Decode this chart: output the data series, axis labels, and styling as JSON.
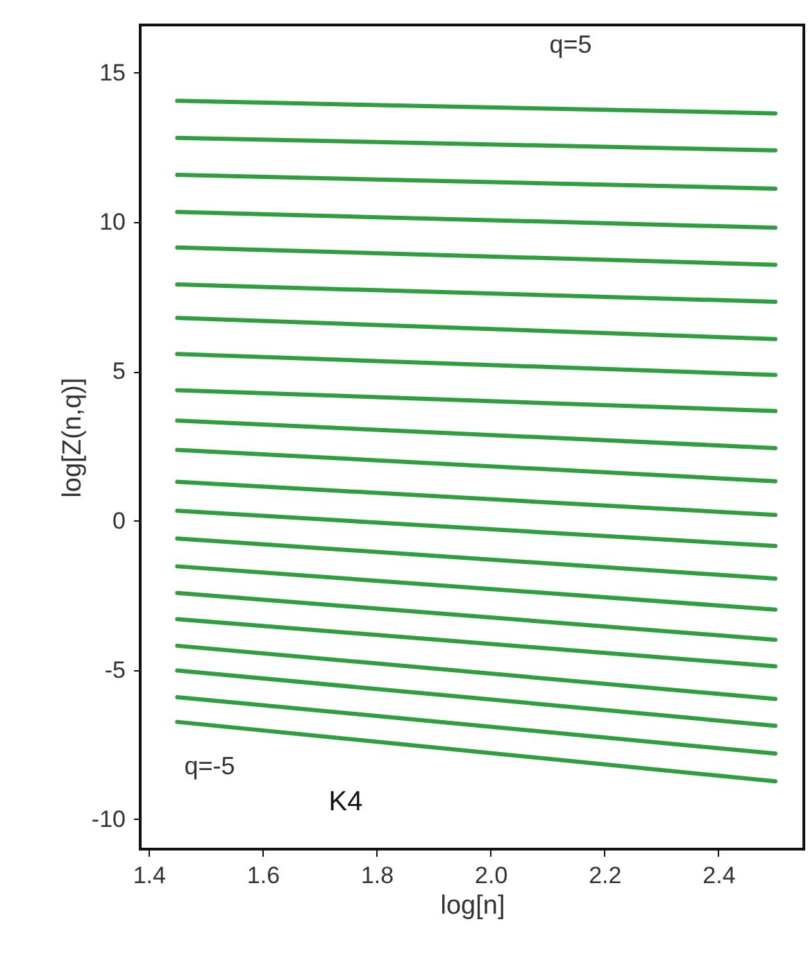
{
  "chart_data": {
    "type": "line",
    "xlabel": "log[n]",
    "ylabel": "log[Z(n,q)]",
    "xlim": [
      1.385,
      2.55
    ],
    "ylim": [
      -11,
      16.6
    ],
    "xticks": [
      1.4,
      1.6,
      1.8,
      {
        "value": 2,
        "label": "2.0"
      },
      2.2,
      2.4
    ],
    "yticks": [
      -10,
      -5,
      0,
      5,
      10,
      15
    ],
    "grid": false,
    "marker": "none",
    "line_style": "solid",
    "x": [
      1.45,
      2.5
    ],
    "series": [
      {
        "color": "#2e9e3e",
        "values": [
          14.06,
          13.64
        ]
      },
      {
        "color": "#2e9e3e",
        "values": [
          12.82,
          12.4
        ]
      },
      {
        "color": "#2e9e3e",
        "values": [
          11.58,
          11.12
        ]
      },
      {
        "color": "#2e9e3e",
        "values": [
          10.34,
          9.81
        ]
      },
      {
        "color": "#2e9e3e",
        "values": [
          9.15,
          8.57
        ]
      },
      {
        "color": "#2e9e3e",
        "values": [
          7.91,
          7.33
        ]
      },
      {
        "color": "#2e9e3e",
        "values": [
          6.79,
          6.08
        ]
      },
      {
        "color": "#2e9e3e",
        "values": [
          5.58,
          4.88
        ]
      },
      {
        "color": "#2e9e3e",
        "values": [
          4.37,
          3.67
        ]
      },
      {
        "color": "#2e9e3e",
        "values": [
          3.35,
          2.43
        ]
      },
      {
        "color": "#2e9e3e",
        "values": [
          2.37,
          1.32
        ]
      },
      {
        "color": "#2e9e3e",
        "values": [
          1.3,
          0.19
        ]
      },
      {
        "color": "#2e9e3e",
        "values": [
          0.33,
          -0.85
        ]
      },
      {
        "color": "#2e9e3e",
        "values": [
          -0.6,
          -1.94
        ]
      },
      {
        "color": "#2e9e3e",
        "values": [
          -1.53,
          -2.98
        ]
      },
      {
        "color": "#2e9e3e",
        "values": [
          -2.42,
          -3.99
        ]
      },
      {
        "color": "#2e9e3e",
        "values": [
          -3.3,
          -4.88
        ]
      },
      {
        "color": "#2e9e3e",
        "values": [
          -4.19,
          -5.97
        ]
      },
      {
        "color": "#2e9e3e",
        "values": [
          -5.02,
          -6.87
        ]
      },
      {
        "color": "#2e9e3e",
        "values": [
          -5.91,
          -7.8
        ]
      },
      {
        "color": "#2e9e3e",
        "values": [
          -6.74,
          -8.73
        ]
      }
    ],
    "annotations": [
      "q=5",
      "q=-5",
      "K4"
    ]
  }
}
